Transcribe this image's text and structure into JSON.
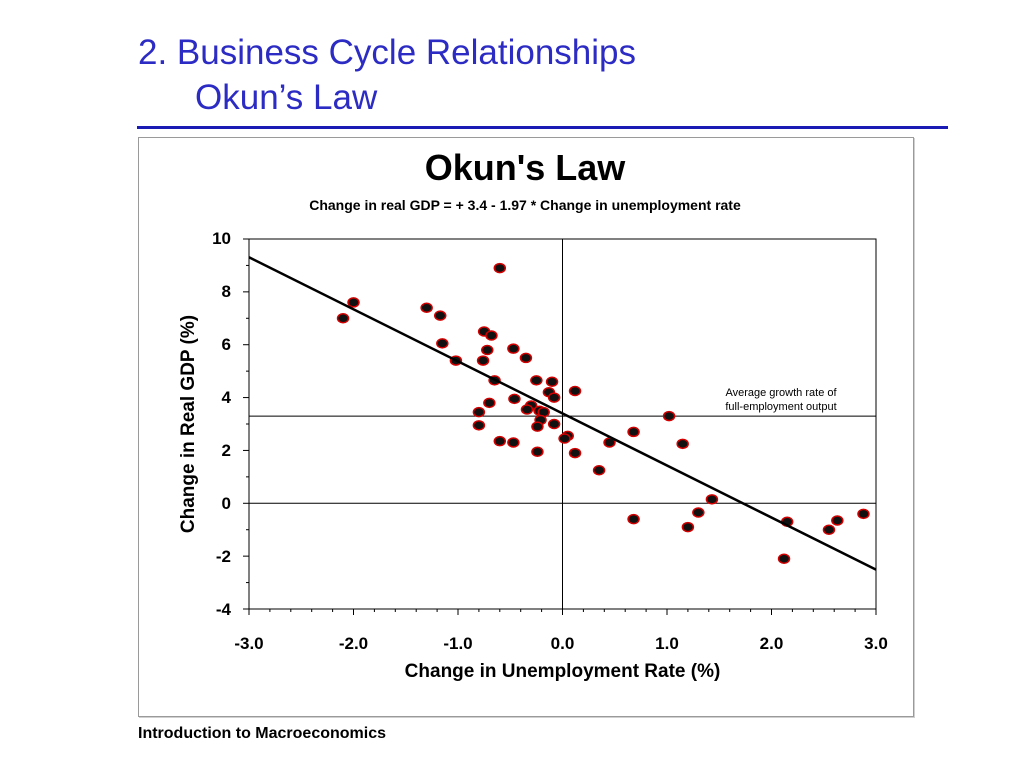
{
  "slide": {
    "title_line1": "2.  Business Cycle Relationships",
    "title_line2": "Okun’s Law",
    "footer": "Introduction to Macroeconomics"
  },
  "colors": {
    "title": "#2c2cc4",
    "rule": "#1a1ab4",
    "point_fill": "#111111",
    "point_stroke": "#d40000"
  },
  "chart_data": {
    "type": "scatter",
    "title": "Okun's Law",
    "subtitle": "Change in real GDP = + 3.4 - 1.97 * Change in unemployment rate",
    "xlabel": "Change in Unemployment Rate (%)",
    "ylabel": "Change in Real GDP (%)",
    "xlim": [
      -3.0,
      3.0
    ],
    "ylim": [
      -4,
      10
    ],
    "xticks": [
      "-3.0",
      "-2.0",
      "-1.0",
      "0.0",
      "1.0",
      "2.0",
      "3.0"
    ],
    "yticks": [
      "-4",
      "-2",
      "0",
      "2",
      "4",
      "6",
      "8",
      "10"
    ],
    "grid": false,
    "regression": {
      "intercept": 3.4,
      "slope": -1.97
    },
    "reference_line": {
      "y": 3.3,
      "label_line1": "Average growth rate of",
      "label_line2": "full-employment output"
    },
    "points": [
      {
        "x": -2.1,
        "y": 7.0
      },
      {
        "x": -2.0,
        "y": 7.6
      },
      {
        "x": -1.3,
        "y": 7.4
      },
      {
        "x": -1.17,
        "y": 7.1
      },
      {
        "x": -1.15,
        "y": 6.05
      },
      {
        "x": -1.02,
        "y": 5.4
      },
      {
        "x": -0.6,
        "y": 8.9
      },
      {
        "x": -0.75,
        "y": 6.5
      },
      {
        "x": -0.68,
        "y": 6.35
      },
      {
        "x": -0.72,
        "y": 5.8
      },
      {
        "x": -0.76,
        "y": 5.4
      },
      {
        "x": -0.47,
        "y": 5.85
      },
      {
        "x": -0.35,
        "y": 5.5
      },
      {
        "x": -0.65,
        "y": 4.65
      },
      {
        "x": -0.25,
        "y": 4.65
      },
      {
        "x": -0.1,
        "y": 4.6
      },
      {
        "x": 0.12,
        "y": 4.25
      },
      {
        "x": -0.13,
        "y": 4.2
      },
      {
        "x": -0.08,
        "y": 4.0
      },
      {
        "x": -0.7,
        "y": 3.8
      },
      {
        "x": -0.46,
        "y": 3.95
      },
      {
        "x": -0.3,
        "y": 3.7
      },
      {
        "x": -0.34,
        "y": 3.55
      },
      {
        "x": -0.8,
        "y": 3.45
      },
      {
        "x": -0.22,
        "y": 3.5
      },
      {
        "x": -0.18,
        "y": 3.45
      },
      {
        "x": -0.21,
        "y": 3.15
      },
      {
        "x": -0.24,
        "y": 2.9
      },
      {
        "x": -0.08,
        "y": 3.0
      },
      {
        "x": -0.8,
        "y": 2.95
      },
      {
        "x": 0.05,
        "y": 2.55
      },
      {
        "x": 0.02,
        "y": 2.45
      },
      {
        "x": -0.6,
        "y": 2.35
      },
      {
        "x": -0.47,
        "y": 2.3
      },
      {
        "x": 0.45,
        "y": 2.3
      },
      {
        "x": -0.24,
        "y": 1.95
      },
      {
        "x": 0.12,
        "y": 1.9
      },
      {
        "x": 0.35,
        "y": 1.25
      },
      {
        "x": 0.68,
        "y": 2.7
      },
      {
        "x": 1.02,
        "y": 3.3
      },
      {
        "x": 1.15,
        "y": 2.25
      },
      {
        "x": 1.43,
        "y": 0.15
      },
      {
        "x": 0.68,
        "y": -0.6
      },
      {
        "x": 1.3,
        "y": -0.35
      },
      {
        "x": 1.2,
        "y": -0.9
      },
      {
        "x": 2.15,
        "y": -0.7
      },
      {
        "x": 2.12,
        "y": -2.1
      },
      {
        "x": 2.55,
        "y": -1.0
      },
      {
        "x": 2.63,
        "y": -0.65
      },
      {
        "x": 2.88,
        "y": -0.4
      }
    ]
  }
}
